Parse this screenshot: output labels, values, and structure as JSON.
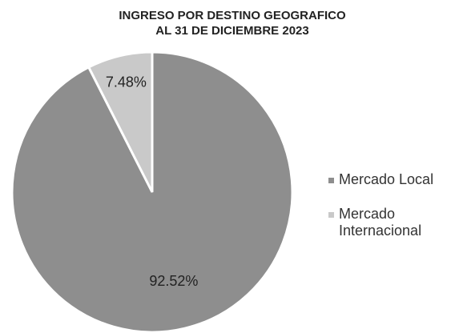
{
  "chart_data": {
    "type": "pie",
    "title": [
      "INGRESO POR DESTINO GEOGRAFICO",
      "AL 31 DE DICIEMBRE 2023"
    ],
    "categories": [
      "Mercado Local",
      "Mercado Internacional"
    ],
    "values": [
      92.52,
      7.48
    ],
    "value_labels": [
      "92.52%",
      "7.48%"
    ],
    "colors": [
      "#8e8e8e",
      "#c9c9c9"
    ],
    "legend": "right"
  }
}
